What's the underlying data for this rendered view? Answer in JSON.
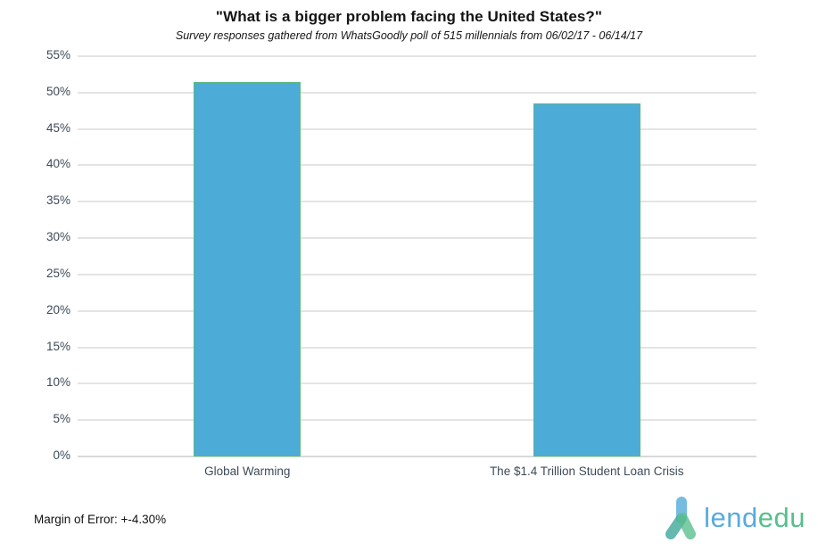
{
  "header": {
    "title": "\"What is a bigger problem facing the United States?\"",
    "subtitle": "Survey responses gathered from WhatsGoodly poll of 515 millennials from 06/02/17 - 06/14/17"
  },
  "chart_data": {
    "type": "bar",
    "title": "\"What is a bigger problem facing the United States?\"",
    "subtitle": "Survey responses gathered from WhatsGoodly poll of 515 millennials from 06/02/17 - 06/14/17",
    "categories": [
      "Global Warming",
      "The $1.4 Trillion Student Loan Crisis"
    ],
    "values": [
      51.5,
      48.5
    ],
    "value_unit": "%",
    "xlabel": "",
    "ylabel": "",
    "ylim": [
      0,
      55
    ],
    "ytick_step": 5,
    "ytick_labels": [
      "0%",
      "5%",
      "10%",
      "15%",
      "20%",
      "25%",
      "30%",
      "35%",
      "40%",
      "45%",
      "50%",
      "55%"
    ],
    "grid": true,
    "legend": "none",
    "bar_fill_color": "#4dabd7",
    "bar_border_color": "#5bbb81"
  },
  "footer": {
    "margin_of_error": "Margin of Error: +-4.30%"
  },
  "logo": {
    "icon": "lendedu-person-icon",
    "text_blue_part": "lend",
    "text_green_part": "edu",
    "blue_color": "#58abdc",
    "green_color": "#57bf8e"
  }
}
